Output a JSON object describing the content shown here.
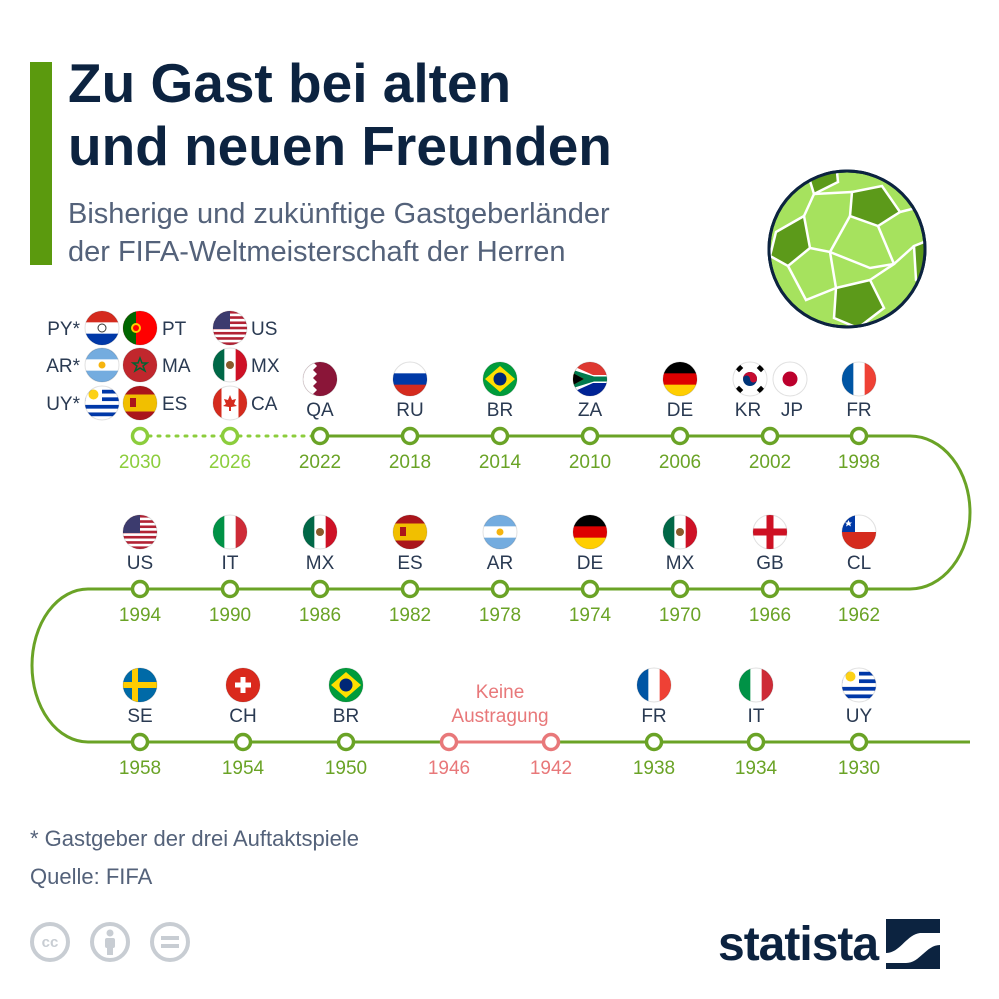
{
  "title": "Zu Gast bei alten\nund neuen Freunden",
  "subtitle": "Bisherige und zukünftige Gastgeberländer\nder FIFA-Weltmeisterschaft der Herren",
  "footnote": "* Gastgeber der drei Auftaktspiele",
  "source": "Quelle: FIFA",
  "brand": "statista",
  "colors": {
    "accent": "#5b9a0e",
    "line": "#6aa326",
    "future": "#8ccd3c",
    "cancelled": "#e8787a",
    "title": "#0c2340",
    "text": "#54627a",
    "ball": "#a6e25e",
    "ball_patch": "#5c9a1a"
  },
  "icons": [
    "soccer-ball-icon",
    "cc-icon",
    "by-icon",
    "nd-icon",
    "statista-logo-icon"
  ],
  "chart_data": {
    "type": "timeline",
    "cancelled_label": "Keine\nAustragung",
    "tournaments": [
      {
        "year": "2030",
        "status": "future",
        "hosts": [
          {
            "code": "PY*",
            "flag": "paraguay"
          },
          {
            "code": "AR*",
            "flag": "argentina"
          },
          {
            "code": "UY*",
            "flag": "uruguay"
          },
          {
            "code": "PT",
            "flag": "portugal"
          },
          {
            "code": "MA",
            "flag": "morocco"
          },
          {
            "code": "ES",
            "flag": "spain"
          }
        ]
      },
      {
        "year": "2026",
        "status": "future",
        "hosts": [
          {
            "code": "US",
            "flag": "usa"
          },
          {
            "code": "MX",
            "flag": "mexico"
          },
          {
            "code": "CA",
            "flag": "canada"
          }
        ]
      },
      {
        "year": "2022",
        "status": "past",
        "hosts": [
          {
            "code": "QA",
            "flag": "qatar"
          }
        ]
      },
      {
        "year": "2018",
        "status": "past",
        "hosts": [
          {
            "code": "RU",
            "flag": "russia"
          }
        ]
      },
      {
        "year": "2014",
        "status": "past",
        "hosts": [
          {
            "code": "BR",
            "flag": "brazil"
          }
        ]
      },
      {
        "year": "2010",
        "status": "past",
        "hosts": [
          {
            "code": "ZA",
            "flag": "southafrica"
          }
        ]
      },
      {
        "year": "2006",
        "status": "past",
        "hosts": [
          {
            "code": "DE",
            "flag": "germany"
          }
        ]
      },
      {
        "year": "2002",
        "status": "past",
        "hosts": [
          {
            "code": "KR",
            "flag": "korea"
          },
          {
            "code": "JP",
            "flag": "japan"
          }
        ]
      },
      {
        "year": "1998",
        "status": "past",
        "hosts": [
          {
            "code": "FR",
            "flag": "france"
          }
        ]
      },
      {
        "year": "1994",
        "status": "past",
        "hosts": [
          {
            "code": "US",
            "flag": "usa"
          }
        ]
      },
      {
        "year": "1990",
        "status": "past",
        "hosts": [
          {
            "code": "IT",
            "flag": "italy"
          }
        ]
      },
      {
        "year": "1986",
        "status": "past",
        "hosts": [
          {
            "code": "MX",
            "flag": "mexico"
          }
        ]
      },
      {
        "year": "1982",
        "status": "past",
        "hosts": [
          {
            "code": "ES",
            "flag": "spain"
          }
        ]
      },
      {
        "year": "1978",
        "status": "past",
        "hosts": [
          {
            "code": "AR",
            "flag": "argentina"
          }
        ]
      },
      {
        "year": "1974",
        "status": "past",
        "hosts": [
          {
            "code": "DE",
            "flag": "germany"
          }
        ]
      },
      {
        "year": "1970",
        "status": "past",
        "hosts": [
          {
            "code": "MX",
            "flag": "mexico"
          }
        ]
      },
      {
        "year": "1966",
        "status": "past",
        "hosts": [
          {
            "code": "GB",
            "flag": "england"
          }
        ]
      },
      {
        "year": "1962",
        "status": "past",
        "hosts": [
          {
            "code": "CL",
            "flag": "chile"
          }
        ]
      },
      {
        "year": "1958",
        "status": "past",
        "hosts": [
          {
            "code": "SE",
            "flag": "sweden"
          }
        ]
      },
      {
        "year": "1954",
        "status": "past",
        "hosts": [
          {
            "code": "CH",
            "flag": "switzerland"
          }
        ]
      },
      {
        "year": "1950",
        "status": "past",
        "hosts": [
          {
            "code": "BR",
            "flag": "brazil"
          }
        ]
      },
      {
        "year": "1946",
        "status": "cancelled",
        "hosts": []
      },
      {
        "year": "1942",
        "status": "cancelled",
        "hosts": []
      },
      {
        "year": "1938",
        "status": "past",
        "hosts": [
          {
            "code": "FR",
            "flag": "france"
          }
        ]
      },
      {
        "year": "1934",
        "status": "past",
        "hosts": [
          {
            "code": "IT",
            "flag": "italy"
          }
        ]
      },
      {
        "year": "1930",
        "status": "past",
        "hosts": [
          {
            "code": "UY",
            "flag": "uruguay"
          }
        ]
      }
    ]
  }
}
